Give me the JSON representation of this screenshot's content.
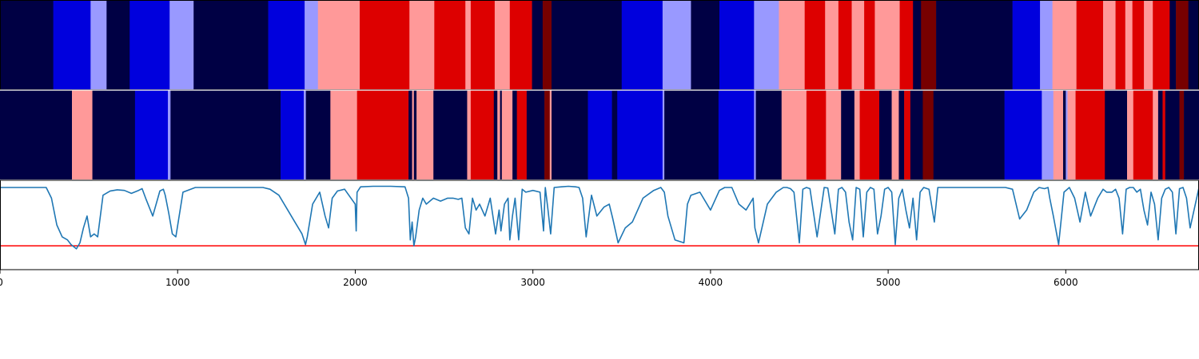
{
  "chart_data": {
    "type": "heatmap",
    "title": "",
    "xlabel": "",
    "ylabel": "",
    "xlim": [
      0,
      6750
    ],
    "x_ticks": [
      0,
      1000,
      2000,
      3000,
      4000,
      5000,
      6000
    ],
    "x_tick_labels": [
      "0",
      "1000",
      "2000",
      "3000",
      "4000",
      "5000",
      "6000"
    ],
    "legend": "none",
    "state_colors": {
      "1": "#000044",
      "2": "#0000dd",
      "3": "#9999ff",
      "4": "#ff9999",
      "5": "#dd0000",
      "6": "#770000"
    },
    "state_tracks": [
      {
        "segments": [
          [
            0,
            300,
            1
          ],
          [
            300,
            510,
            2
          ],
          [
            510,
            600,
            3
          ],
          [
            600,
            730,
            1
          ],
          [
            730,
            955,
            2
          ],
          [
            955,
            1090,
            3
          ],
          [
            1090,
            1510,
            1
          ],
          [
            1510,
            1715,
            2
          ],
          [
            1715,
            1790,
            3
          ],
          [
            1790,
            2025,
            4
          ],
          [
            2025,
            2305,
            5
          ],
          [
            2305,
            2445,
            4
          ],
          [
            2445,
            2620,
            5
          ],
          [
            2620,
            2650,
            4
          ],
          [
            2650,
            2785,
            5
          ],
          [
            2785,
            2870,
            4
          ],
          [
            2870,
            2995,
            5
          ],
          [
            2995,
            3055,
            1
          ],
          [
            3055,
            3105,
            6
          ],
          [
            3105,
            3500,
            1
          ],
          [
            3500,
            3730,
            2
          ],
          [
            3730,
            3890,
            3
          ],
          [
            3890,
            4050,
            1
          ],
          [
            4050,
            4245,
            2
          ],
          [
            4245,
            4385,
            3
          ],
          [
            4385,
            4530,
            4
          ],
          [
            4530,
            4645,
            5
          ],
          [
            4645,
            4720,
            4
          ],
          [
            4720,
            4795,
            5
          ],
          [
            4795,
            4865,
            4
          ],
          [
            4865,
            4925,
            5
          ],
          [
            4925,
            5065,
            4
          ],
          [
            5065,
            5140,
            5
          ],
          [
            5140,
            5185,
            1
          ],
          [
            5185,
            5270,
            6
          ],
          [
            5270,
            5700,
            1
          ],
          [
            5700,
            5855,
            2
          ],
          [
            5855,
            5925,
            3
          ],
          [
            5925,
            6060,
            4
          ],
          [
            6060,
            6210,
            5
          ],
          [
            6210,
            6280,
            4
          ],
          [
            6280,
            6335,
            5
          ],
          [
            6335,
            6375,
            4
          ],
          [
            6375,
            6440,
            5
          ],
          [
            6440,
            6490,
            4
          ],
          [
            6490,
            6585,
            5
          ],
          [
            6585,
            6620,
            1
          ],
          [
            6620,
            6690,
            6
          ],
          [
            6690,
            6750,
            1
          ]
        ]
      },
      {
        "segments": [
          [
            0,
            405,
            1
          ],
          [
            405,
            520,
            4
          ],
          [
            520,
            760,
            1
          ],
          [
            760,
            945,
            2
          ],
          [
            945,
            960,
            3
          ],
          [
            960,
            1580,
            1
          ],
          [
            1580,
            1710,
            2
          ],
          [
            1710,
            1722,
            3
          ],
          [
            1722,
            1860,
            1
          ],
          [
            1860,
            2010,
            4
          ],
          [
            2010,
            2300,
            5
          ],
          [
            2300,
            2320,
            1
          ],
          [
            2320,
            2330,
            4
          ],
          [
            2330,
            2345,
            1
          ],
          [
            2345,
            2440,
            4
          ],
          [
            2440,
            2630,
            1
          ],
          [
            2630,
            2650,
            4
          ],
          [
            2650,
            2780,
            5
          ],
          [
            2780,
            2800,
            1
          ],
          [
            2800,
            2815,
            4
          ],
          [
            2815,
            2825,
            1
          ],
          [
            2825,
            2885,
            4
          ],
          [
            2885,
            2910,
            1
          ],
          [
            2910,
            2965,
            5
          ],
          [
            2965,
            3065,
            1
          ],
          [
            3065,
            3095,
            6
          ],
          [
            3095,
            3105,
            4
          ],
          [
            3105,
            3310,
            1
          ],
          [
            3310,
            3445,
            2
          ],
          [
            3445,
            3475,
            1
          ],
          [
            3475,
            3730,
            2
          ],
          [
            3730,
            3740,
            3
          ],
          [
            3740,
            4045,
            1
          ],
          [
            4045,
            4245,
            2
          ],
          [
            4245,
            4255,
            3
          ],
          [
            4255,
            4400,
            1
          ],
          [
            4400,
            4540,
            4
          ],
          [
            4540,
            4650,
            5
          ],
          [
            4650,
            4735,
            4
          ],
          [
            4735,
            4810,
            1
          ],
          [
            4810,
            4840,
            4
          ],
          [
            4840,
            4950,
            5
          ],
          [
            4950,
            5020,
            1
          ],
          [
            5020,
            5060,
            4
          ],
          [
            5060,
            5090,
            1
          ],
          [
            5090,
            5125,
            5
          ],
          [
            5125,
            5195,
            1
          ],
          [
            5195,
            5255,
            6
          ],
          [
            5255,
            5655,
            1
          ],
          [
            5655,
            5865,
            2
          ],
          [
            5865,
            5930,
            3
          ],
          [
            5930,
            5985,
            4
          ],
          [
            5985,
            6000,
            1
          ],
          [
            6000,
            6010,
            3
          ],
          [
            6010,
            6055,
            4
          ],
          [
            6055,
            6220,
            5
          ],
          [
            6220,
            6345,
            1
          ],
          [
            6345,
            6380,
            4
          ],
          [
            6380,
            6490,
            5
          ],
          [
            6490,
            6520,
            4
          ],
          [
            6520,
            6545,
            1
          ],
          [
            6545,
            6560,
            5
          ],
          [
            6560,
            6640,
            1
          ],
          [
            6640,
            6665,
            6
          ],
          [
            6665,
            6750,
            1
          ]
        ]
      }
    ],
    "signal": {
      "color": "#1f77b4",
      "ylim": [
        0,
        1.5
      ],
      "threshold": {
        "value": 0.4,
        "color": "#ff0000"
      },
      "x": [
        0,
        60,
        100,
        200,
        260,
        290,
        320,
        350,
        380,
        400,
        430,
        450,
        470,
        490,
        510,
        530,
        550,
        580,
        620,
        660,
        700,
        740,
        780,
        800,
        820,
        860,
        900,
        920,
        930,
        950,
        970,
        990,
        1030,
        1100,
        1200,
        1300,
        1400,
        1480,
        1520,
        1570,
        1620,
        1660,
        1700,
        1720,
        1730,
        1760,
        1800,
        1830,
        1850,
        1870,
        1900,
        1940,
        2000,
        2005,
        2010,
        2030,
        2100,
        2200,
        2280,
        2300,
        2310,
        2320,
        2330,
        2340,
        2360,
        2380,
        2400,
        2440,
        2480,
        2520,
        2550,
        2580,
        2600,
        2620,
        2640,
        2660,
        2680,
        2700,
        2730,
        2760,
        2790,
        2810,
        2820,
        2840,
        2860,
        2870,
        2885,
        2900,
        2920,
        2940,
        2960,
        3000,
        3040,
        3060,
        3070,
        3085,
        3100,
        3120,
        3160,
        3200,
        3240,
        3260,
        3280,
        3300,
        3330,
        3360,
        3400,
        3430,
        3450,
        3480,
        3520,
        3560,
        3620,
        3680,
        3720,
        3740,
        3760,
        3800,
        3850,
        3870,
        3890,
        3940,
        4000,
        4050,
        4080,
        4120,
        4160,
        4200,
        4240,
        4250,
        4270,
        4320,
        4370,
        4410,
        4430,
        4450,
        4470,
        4500,
        4520,
        4540,
        4560,
        4600,
        4640,
        4660,
        4700,
        4720,
        4740,
        4760,
        4780,
        4800,
        4820,
        4840,
        4860,
        4880,
        4900,
        4920,
        4940,
        4960,
        4980,
        5000,
        5020,
        5040,
        5060,
        5080,
        5100,
        5120,
        5140,
        5160,
        5180,
        5200,
        5230,
        5260,
        5280,
        5320,
        5400,
        5500,
        5560,
        5620,
        5660,
        5700,
        5740,
        5780,
        5820,
        5850,
        5880,
        5900,
        5910,
        5930,
        5960,
        5990,
        6020,
        6050,
        6080,
        6110,
        6140,
        6180,
        6210,
        6230,
        6260,
        6280,
        6300,
        6320,
        6340,
        6360,
        6380,
        6400,
        6420,
        6440,
        6460,
        6480,
        6500,
        6520,
        6540,
        6560,
        6580,
        6600,
        6620,
        6640,
        6660,
        6680,
        6700,
        6750
      ],
      "y": [
        1.38,
        1.38,
        1.38,
        1.38,
        1.38,
        1.2,
        0.75,
        0.55,
        0.5,
        0.42,
        0.35,
        0.45,
        0.7,
        0.9,
        0.55,
        0.6,
        0.55,
        1.25,
        1.32,
        1.34,
        1.33,
        1.28,
        1.33,
        1.36,
        1.2,
        0.9,
        1.32,
        1.35,
        1.25,
        0.95,
        0.6,
        0.55,
        1.3,
        1.38,
        1.38,
        1.38,
        1.38,
        1.38,
        1.35,
        1.25,
        1.0,
        0.8,
        0.6,
        0.42,
        0.55,
        1.1,
        1.3,
        0.9,
        0.7,
        1.2,
        1.32,
        1.35,
        1.1,
        0.65,
        1.3,
        1.39,
        1.4,
        1.4,
        1.39,
        1.2,
        0.5,
        0.8,
        0.4,
        0.55,
        1.0,
        1.2,
        1.1,
        1.2,
        1.15,
        1.2,
        1.2,
        1.18,
        1.2,
        0.7,
        0.6,
        1.2,
        1.0,
        1.1,
        0.9,
        1.2,
        0.6,
        1.0,
        0.65,
        1.1,
        1.2,
        0.5,
        0.9,
        1.2,
        0.5,
        1.35,
        1.3,
        1.33,
        1.3,
        0.65,
        1.38,
        1.0,
        0.6,
        1.38,
        1.39,
        1.4,
        1.39,
        1.38,
        1.2,
        0.55,
        1.25,
        0.9,
        1.05,
        1.1,
        0.85,
        0.45,
        0.7,
        0.8,
        1.2,
        1.33,
        1.38,
        1.3,
        0.9,
        0.5,
        0.45,
        1.1,
        1.25,
        1.3,
        1.0,
        1.33,
        1.38,
        1.38,
        1.1,
        1.0,
        1.2,
        0.7,
        0.45,
        1.1,
        1.3,
        1.38,
        1.38,
        1.36,
        1.3,
        0.45,
        1.35,
        1.38,
        1.36,
        0.55,
        1.38,
        1.37,
        0.6,
        1.35,
        1.38,
        1.3,
        0.8,
        0.5,
        1.38,
        1.35,
        0.55,
        1.3,
        1.38,
        1.35,
        0.6,
        0.9,
        1.35,
        1.38,
        1.3,
        0.42,
        1.2,
        1.35,
        1.0,
        0.7,
        1.2,
        0.5,
        1.3,
        1.38,
        1.35,
        0.8,
        1.38,
        1.38,
        1.38,
        1.38,
        1.38,
        1.38,
        1.38,
        1.35,
        0.85,
        1.0,
        1.3,
        1.38,
        1.36,
        1.38,
        1.2,
        0.9,
        0.42,
        1.3,
        1.38,
        1.2,
        0.8,
        1.3,
        0.9,
        1.2,
        1.35,
        1.3,
        1.3,
        1.35,
        1.2,
        0.6,
        1.35,
        1.38,
        1.38,
        1.3,
        1.35,
        1.0,
        0.75,
        1.3,
        1.1,
        0.5,
        1.2,
        1.35,
        1.38,
        1.3,
        0.6,
        1.36,
        1.38,
        1.2,
        0.7,
        1.38,
        1.0,
        1.38,
        1.35,
        1.38
      ]
    }
  }
}
